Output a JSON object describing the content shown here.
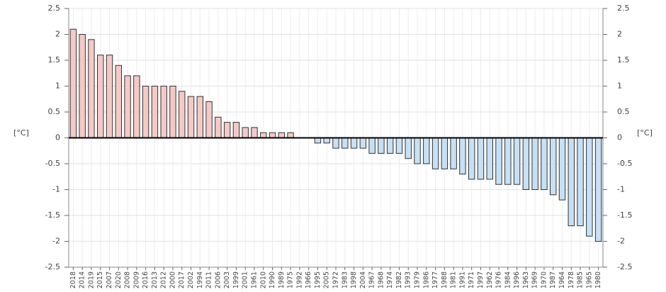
{
  "chart_data": {
    "type": "bar",
    "y_label": "[°C]",
    "y2_label": "[°C]",
    "categories": [
      "2018",
      "2014",
      "2019",
      "2015",
      "2007",
      "2020",
      "2008",
      "2009",
      "2016",
      "2013",
      "2012",
      "2000",
      "2017",
      "2002",
      "1994",
      "2011",
      "2006",
      "2003",
      "1999",
      "2001",
      "1961",
      "2010",
      "1990",
      "1989",
      "1975",
      "1992",
      "1966",
      "1995",
      "2005",
      "1972",
      "1983",
      "1998",
      "2004",
      "1967",
      "1968",
      "1974",
      "1982",
      "1993",
      "1979",
      "1986",
      "1977",
      "1988",
      "1981",
      "1991",
      "1971",
      "1997",
      "1962",
      "1976",
      "1984",
      "1996",
      "1963",
      "1969",
      "1970",
      "1987",
      "1964",
      "1978",
      "1985",
      "1965",
      "1980"
    ],
    "values": [
      2.1,
      2.0,
      1.9,
      1.6,
      1.6,
      1.4,
      1.2,
      1.2,
      1.0,
      1.0,
      1.0,
      1.0,
      0.9,
      0.8,
      0.8,
      0.7,
      0.4,
      0.3,
      0.3,
      0.2,
      0.2,
      0.1,
      0.1,
      0.1,
      0.1,
      0,
      0,
      -0.1,
      -0.1,
      -0.2,
      -0.2,
      -0.2,
      -0.2,
      -0.3,
      -0.3,
      -0.3,
      -0.3,
      -0.4,
      -0.5,
      -0.5,
      -0.6,
      -0.6,
      -0.6,
      -0.7,
      -0.8,
      -0.8,
      -0.8,
      -0.9,
      -0.9,
      -0.9,
      -1.0,
      -1.0,
      -1.0,
      -1.1,
      -1.2,
      -1.7,
      -1.7,
      -1.9,
      -2.0
    ],
    "positive_color": "#f5c9c6",
    "negative_color": "#c6e0f6",
    "ylim": [
      -2.5,
      2.5
    ],
    "yticks": [
      -2.5,
      -2,
      -1.5,
      -1,
      -0.5,
      0,
      0.5,
      1,
      1.5,
      2,
      2.5
    ],
    "y2lim": [
      -2.5,
      2.5
    ],
    "y2ticks": [
      -2.5,
      -2,
      -1.5,
      -1,
      -0.5,
      0,
      0.5,
      1,
      1.5,
      2,
      2.5
    ],
    "grid": true
  }
}
